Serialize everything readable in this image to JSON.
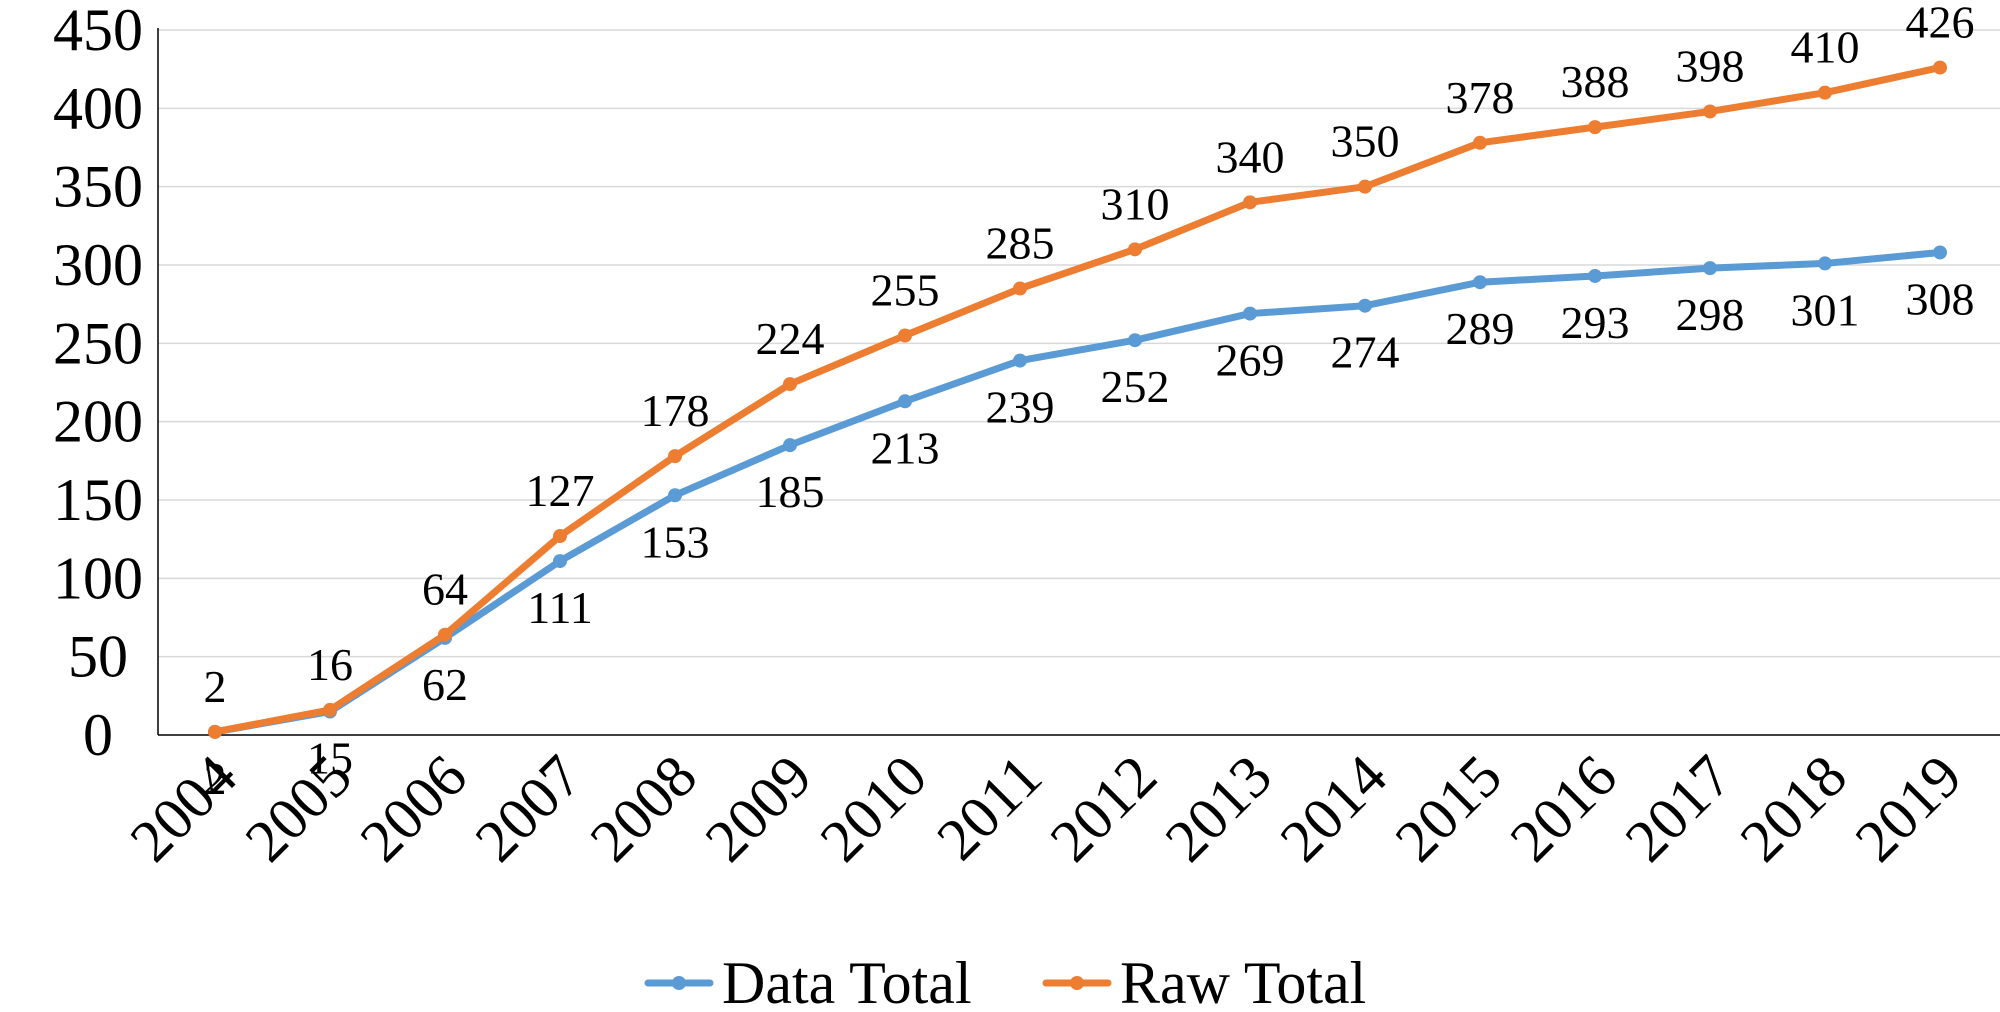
{
  "chart_data": {
    "type": "line",
    "title": "",
    "xlabel": "",
    "ylabel": "",
    "categories": [
      "2004",
      "2005",
      "2006",
      "2007",
      "2008",
      "2009",
      "2010",
      "2011",
      "2012",
      "2013",
      "2014",
      "2015",
      "2016",
      "2017",
      "2018",
      "2019"
    ],
    "ylim": [
      0,
      450
    ],
    "yticks": [
      "0",
      "50",
      "100",
      "150",
      "200",
      "250",
      "300",
      "350",
      "400",
      "450"
    ],
    "grid": true,
    "legend_position": "bottom",
    "series": [
      {
        "name": "Data Total",
        "color": "#5b9bd5",
        "values": [
          2,
          15,
          62,
          111,
          153,
          185,
          213,
          239,
          252,
          269,
          274,
          289,
          293,
          298,
          301,
          308
        ],
        "label_position": "below"
      },
      {
        "name": "Raw Total",
        "color": "#ed7d31",
        "values": [
          2,
          16,
          64,
          127,
          178,
          224,
          255,
          285,
          310,
          340,
          350,
          378,
          388,
          398,
          410,
          426
        ],
        "label_position": "above"
      }
    ]
  }
}
